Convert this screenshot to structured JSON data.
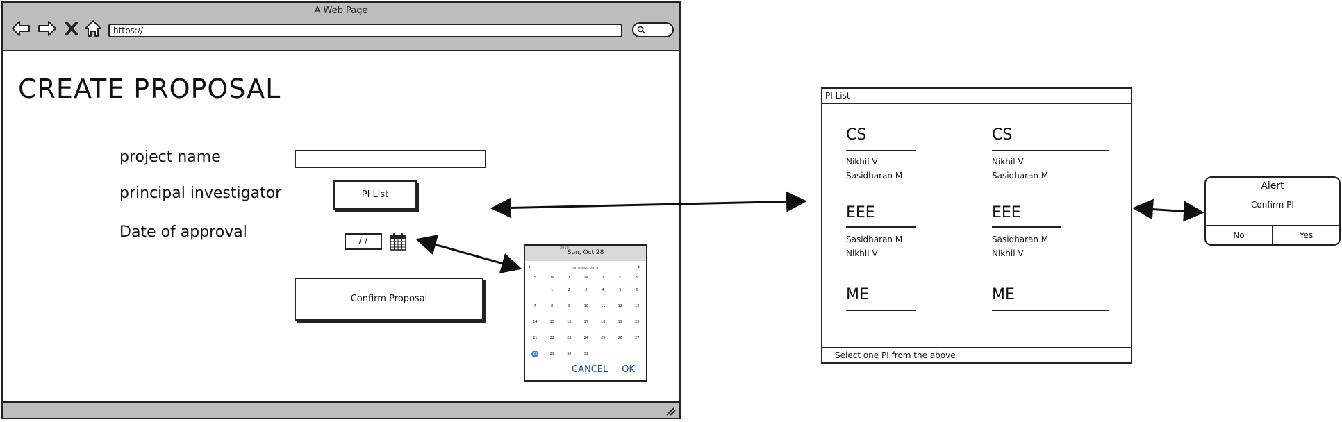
{
  "browser": {
    "title": "A Web Page",
    "address": "https://"
  },
  "form": {
    "heading": "CREATE PROPOSAL",
    "project_label": "project name",
    "pi_label": "principal investigator",
    "pi_button": "PI List",
    "date_label": "Date of approval",
    "date_value": "/ /",
    "confirm_button": "Confirm Proposal"
  },
  "datepicker": {
    "year": "2019",
    "selected_label": "Sun, Oct 28",
    "month_label": "OCTOBER 2019",
    "weekdays": [
      "S",
      "M",
      "T",
      "W",
      "T",
      "F",
      "S"
    ],
    "weeks": [
      [
        "",
        "1",
        "2",
        "3",
        "4",
        "5",
        "6"
      ],
      [
        "7",
        "8",
        "9",
        "10",
        "11",
        "12",
        "13"
      ],
      [
        "14",
        "15",
        "16",
        "17",
        "18",
        "19",
        "20"
      ],
      [
        "21",
        "22",
        "23",
        "24",
        "25",
        "26",
        "27"
      ],
      [
        "28",
        "29",
        "30",
        "31",
        "",
        "",
        ""
      ]
    ],
    "selected_day": "28",
    "cancel": "CANCEL",
    "ok": "OK"
  },
  "pi_list": {
    "title": "PI List",
    "footer": "Select one PI from the above",
    "groups": [
      {
        "dept": "CS",
        "members": [
          "Nikhil V",
          "Sasidharan M"
        ]
      },
      {
        "dept": "CS",
        "members": [
          "Nikhil V",
          "Sasidharan M"
        ]
      },
      {
        "dept": "EEE",
        "members": [
          "Sasidharan M",
          "Nikhil V"
        ]
      },
      {
        "dept": "EEE",
        "members": [
          "Sasidharan M",
          "Nikhil V"
        ]
      },
      {
        "dept": "ME",
        "members": []
      },
      {
        "dept": "ME",
        "members": []
      }
    ]
  },
  "alert": {
    "title": "Alert",
    "message": "Confirm PI",
    "no": "No",
    "yes": "Yes"
  },
  "icons": {
    "back": "back-arrow-icon",
    "forward": "forward-arrow-icon",
    "stop": "close-icon",
    "home": "home-icon",
    "search": "search-icon",
    "calendar": "calendar-icon",
    "resize": "resize-grip-icon"
  }
}
